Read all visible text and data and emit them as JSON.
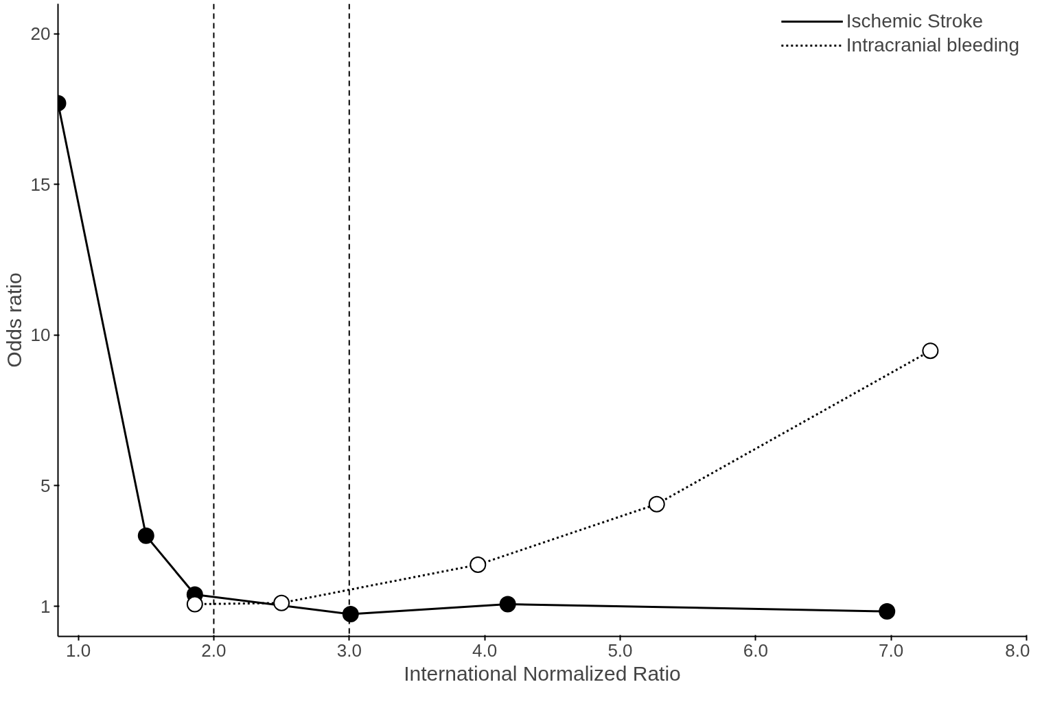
{
  "chart_data": {
    "type": "line",
    "xlabel": "International Normalized Ratio",
    "ylabel": "Odds ratio",
    "xlim": [
      0.85,
      8.0
    ],
    "ylim": [
      0,
      21
    ],
    "xticks": [
      {
        "value": 1,
        "label": "1.0"
      },
      {
        "value": 2,
        "label": "2.0"
      },
      {
        "value": 3,
        "label": "3.0"
      },
      {
        "value": 4,
        "label": "4.0"
      },
      {
        "value": 5,
        "label": "5.0"
      },
      {
        "value": 6,
        "label": "6.0"
      },
      {
        "value": 7,
        "label": "7.0"
      },
      {
        "value": 8,
        "label": "8.0"
      }
    ],
    "yticks": [
      1,
      5,
      10,
      15,
      20
    ],
    "grid": false,
    "legend": "top right",
    "marker": "circle",
    "series": [
      {
        "name": "Ischemic Stroke",
        "color": "#000000",
        "line_style": "solid",
        "x": [
          0.85,
          1.5,
          1.86,
          3.01,
          4.17,
          6.97
        ],
        "values": [
          17.7,
          3.34,
          1.39,
          0.74,
          1.07,
          0.83
        ]
      },
      {
        "name": "Intracranial bleeding",
        "color": "#000000",
        "line_style": "dotted",
        "x": [
          1.86,
          2.5,
          3.95,
          5.27,
          7.29
        ],
        "values": [
          1.07,
          1.11,
          2.38,
          4.39,
          9.48
        ]
      }
    ],
    "ref_lines": [
      {
        "axis": "x",
        "value": 2,
        "line_style": "dashed",
        "color": "#000000"
      },
      {
        "axis": "x",
        "value": 3,
        "line_style": "dashed",
        "color": "#000000"
      }
    ]
  }
}
